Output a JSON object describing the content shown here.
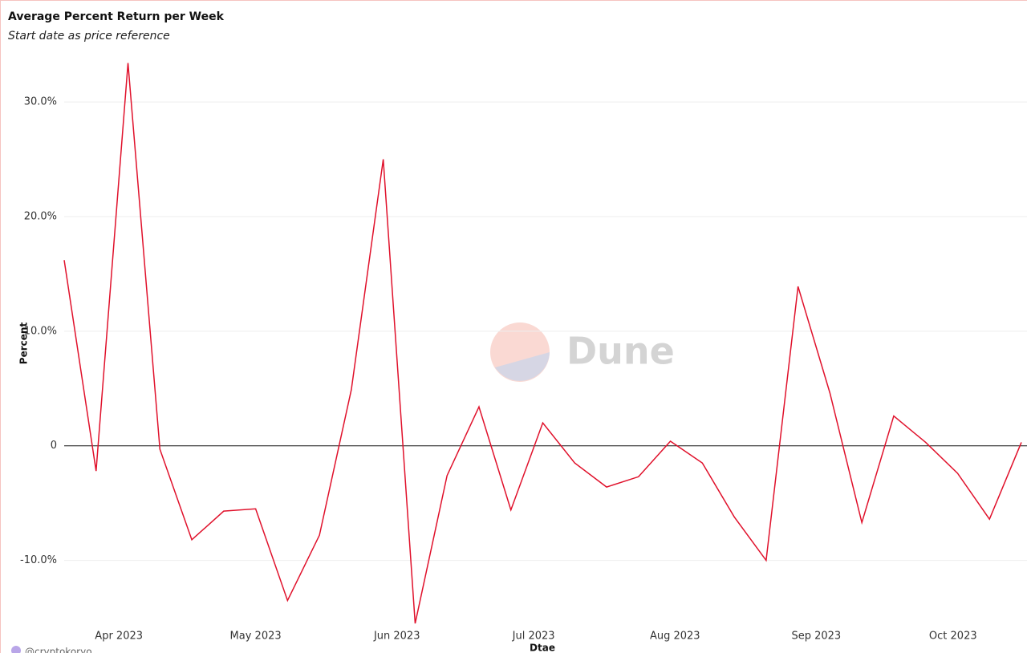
{
  "chart_data": {
    "type": "line",
    "title": "Average Percent Return per Week",
    "subtitle": "Start date as price reference",
    "x_label": "Dtae",
    "y_label": "Percent",
    "watermark": "Dune",
    "author": "@cryptokoryo",
    "x": [
      "2023-03-20",
      "2023-03-27",
      "2023-04-03",
      "2023-04-10",
      "2023-04-17",
      "2023-04-24",
      "2023-05-01",
      "2023-05-08",
      "2023-05-15",
      "2023-05-22",
      "2023-05-29",
      "2023-06-05",
      "2023-06-12",
      "2023-06-19",
      "2023-06-26",
      "2023-07-03",
      "2023-07-10",
      "2023-07-17",
      "2023-07-24",
      "2023-07-31",
      "2023-08-07",
      "2023-08-14",
      "2023-08-21",
      "2023-08-28",
      "2023-09-04",
      "2023-09-11",
      "2023-09-18",
      "2023-09-25",
      "2023-10-02",
      "2023-10-09",
      "2023-10-16"
    ],
    "series": [
      {
        "name": "Percent",
        "color": "#e0112b",
        "values": [
          16.2,
          -2.2,
          33.4,
          -0.3,
          -8.2,
          -5.7,
          -5.5,
          -13.5,
          -7.8,
          4.9,
          25.0,
          -15.5,
          -2.6,
          3.4,
          -5.6,
          2.0,
          -1.5,
          -3.6,
          -2.7,
          0.4,
          -1.5,
          -6.2,
          -10.0,
          13.9,
          4.6,
          -6.7,
          2.6,
          0.3,
          -2.4,
          -6.4,
          0.3
        ]
      }
    ],
    "xlim": [
      "2023-03-20",
      "2023-10-16"
    ],
    "xticks": [
      {
        "value": "2023-04-01",
        "label": "Apr 2023"
      },
      {
        "value": "2023-05-01",
        "label": "May 2023"
      },
      {
        "value": "2023-06-01",
        "label": "Jun 2023"
      },
      {
        "value": "2023-07-01",
        "label": "Jul 2023"
      },
      {
        "value": "2023-08-01",
        "label": "Aug 2023"
      },
      {
        "value": "2023-09-01",
        "label": "Sep 2023"
      },
      {
        "value": "2023-10-01",
        "label": "Oct 2023"
      }
    ],
    "ylim": [
      -15.7,
      34.7
    ],
    "yticks": [
      {
        "value": -10,
        "label": "-10.0%"
      },
      0,
      {
        "value": 10,
        "label": "10.0%"
      },
      {
        "value": 20,
        "label": "20.0%"
      },
      {
        "value": 30,
        "label": "30.0%"
      }
    ],
    "grid": true,
    "zero_line_color": "#111111"
  }
}
